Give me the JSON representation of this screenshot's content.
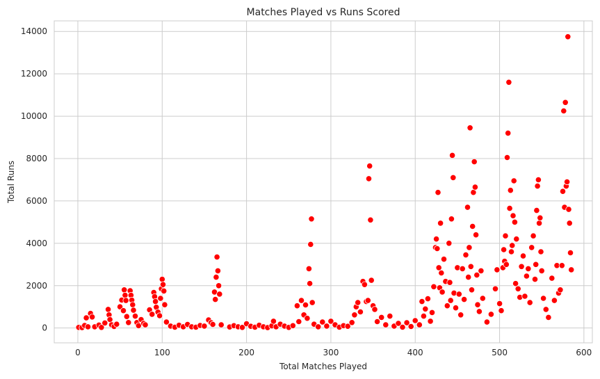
{
  "chart_data": {
    "type": "scatter",
    "title": "Matches Played vs Runs Scored",
    "xlabel": "Total Matches Played",
    "ylabel": "Total Runs",
    "xlim": [
      -28,
      610
    ],
    "ylim": [
      -700,
      14500
    ],
    "x_ticks": [
      0,
      100,
      200,
      300,
      400,
      500,
      600
    ],
    "x_tick_labels": [
      "0",
      "100",
      "200",
      "300",
      "400",
      "500",
      "600"
    ],
    "y_ticks": [
      0,
      2000,
      4000,
      6000,
      8000,
      10000,
      12000,
      14000
    ],
    "y_tick_labels": [
      "0",
      "2000",
      "4000",
      "6000",
      "8000",
      "10000",
      "12000",
      "14000"
    ],
    "grid": true,
    "marker_color": "#ff0000",
    "series": [
      {
        "points": [
          [
            1,
            30
          ],
          [
            5,
            20
          ],
          [
            8,
            120
          ],
          [
            10,
            480
          ],
          [
            12,
            60
          ],
          [
            15,
            690
          ],
          [
            17,
            520
          ],
          [
            20,
            60
          ],
          [
            25,
            140
          ],
          [
            28,
            30
          ],
          [
            32,
            240
          ],
          [
            36,
            880
          ],
          [
            37,
            620
          ],
          [
            38,
            400
          ],
          [
            40,
            150
          ],
          [
            43,
            70
          ],
          [
            46,
            180
          ],
          [
            50,
            1000
          ],
          [
            52,
            1320
          ],
          [
            54,
            820
          ],
          [
            55,
            1800
          ],
          [
            56,
            1550
          ],
          [
            57,
            1300
          ],
          [
            58,
            540
          ],
          [
            60,
            260
          ],
          [
            62,
            1760
          ],
          [
            63,
            1550
          ],
          [
            64,
            1320
          ],
          [
            65,
            1100
          ],
          [
            66,
            840
          ],
          [
            68,
            560
          ],
          [
            70,
            260
          ],
          [
            72,
            110
          ],
          [
            75,
            400
          ],
          [
            78,
            220
          ],
          [
            80,
            150
          ],
          [
            85,
            860
          ],
          [
            88,
            650
          ],
          [
            90,
            1680
          ],
          [
            91,
            1480
          ],
          [
            92,
            1250
          ],
          [
            93,
            980
          ],
          [
            95,
            750
          ],
          [
            97,
            580
          ],
          [
            98,
            1400
          ],
          [
            99,
            1850
          ],
          [
            100,
            2300
          ],
          [
            101,
            2050
          ],
          [
            102,
            1750
          ],
          [
            103,
            1100
          ],
          [
            105,
            280
          ],
          [
            110,
            90
          ],
          [
            115,
            40
          ],
          [
            120,
            130
          ],
          [
            125,
            60
          ],
          [
            130,
            170
          ],
          [
            135,
            60
          ],
          [
            140,
            40
          ],
          [
            145,
            120
          ],
          [
            150,
            90
          ],
          [
            155,
            380
          ],
          [
            158,
            250
          ],
          [
            160,
            170
          ],
          [
            162,
            1700
          ],
          [
            163,
            1350
          ],
          [
            164,
            2400
          ],
          [
            165,
            3350
          ],
          [
            166,
            2700
          ],
          [
            167,
            2000
          ],
          [
            168,
            1600
          ],
          [
            170,
            150
          ],
          [
            180,
            50
          ],
          [
            185,
            110
          ],
          [
            190,
            60
          ],
          [
            195,
            30
          ],
          [
            200,
            200
          ],
          [
            205,
            80
          ],
          [
            210,
            40
          ],
          [
            215,
            130
          ],
          [
            220,
            60
          ],
          [
            225,
            20
          ],
          [
            230,
            100
          ],
          [
            232,
            320
          ],
          [
            235,
            60
          ],
          [
            240,
            180
          ],
          [
            245,
            90
          ],
          [
            250,
            30
          ],
          [
            255,
            110
          ],
          [
            260,
            1050
          ],
          [
            262,
            300
          ],
          [
            265,
            1300
          ],
          [
            268,
            620
          ],
          [
            270,
            1090
          ],
          [
            272,
            460
          ],
          [
            274,
            2800
          ],
          [
            275,
            2100
          ],
          [
            276,
            3950
          ],
          [
            277,
            5150
          ],
          [
            278,
            1200
          ],
          [
            280,
            180
          ],
          [
            285,
            60
          ],
          [
            290,
            280
          ],
          [
            295,
            90
          ],
          [
            300,
            320
          ],
          [
            305,
            150
          ],
          [
            310,
            40
          ],
          [
            315,
            110
          ],
          [
            320,
            80
          ],
          [
            325,
            260
          ],
          [
            328,
            620
          ],
          [
            330,
            1000
          ],
          [
            332,
            1200
          ],
          [
            335,
            760
          ],
          [
            338,
            2200
          ],
          [
            340,
            2050
          ],
          [
            342,
            1250
          ],
          [
            344,
            1300
          ],
          [
            345,
            7050
          ],
          [
            346,
            7650
          ],
          [
            347,
            5100
          ],
          [
            348,
            2250
          ],
          [
            350,
            1050
          ],
          [
            352,
            880
          ],
          [
            355,
            300
          ],
          [
            360,
            500
          ],
          [
            365,
            150
          ],
          [
            370,
            560
          ],
          [
            375,
            90
          ],
          [
            380,
            220
          ],
          [
            385,
            40
          ],
          [
            390,
            250
          ],
          [
            395,
            70
          ],
          [
            400,
            350
          ],
          [
            405,
            150
          ],
          [
            408,
            1250
          ],
          [
            410,
            560
          ],
          [
            412,
            900
          ],
          [
            415,
            1380
          ],
          [
            418,
            320
          ],
          [
            420,
            730
          ],
          [
            422,
            1950
          ],
          [
            424,
            3800
          ],
          [
            425,
            4200
          ],
          [
            426,
            3750
          ],
          [
            427,
            6400
          ],
          [
            428,
            2850
          ],
          [
            429,
            1900
          ],
          [
            430,
            4950
          ],
          [
            431,
            2600
          ],
          [
            432,
            1700
          ],
          [
            434,
            3250
          ],
          [
            436,
            2200
          ],
          [
            438,
            1050
          ],
          [
            440,
            4000
          ],
          [
            441,
            2150
          ],
          [
            442,
            1300
          ],
          [
            443,
            5150
          ],
          [
            444,
            8150
          ],
          [
            445,
            7100
          ],
          [
            446,
            1650
          ],
          [
            448,
            950
          ],
          [
            450,
            2850
          ],
          [
            452,
            1600
          ],
          [
            454,
            620
          ],
          [
            456,
            2800
          ],
          [
            458,
            1350
          ],
          [
            460,
            3450
          ],
          [
            462,
            5700
          ],
          [
            463,
            2400
          ],
          [
            464,
            3800
          ],
          [
            465,
            9450
          ],
          [
            466,
            2900
          ],
          [
            467,
            1800
          ],
          [
            468,
            4800
          ],
          [
            469,
            6400
          ],
          [
            470,
            7850
          ],
          [
            471,
            6650
          ],
          [
            472,
            4400
          ],
          [
            473,
            2500
          ],
          [
            474,
            1100
          ],
          [
            476,
            780
          ],
          [
            478,
            2700
          ],
          [
            480,
            1400
          ],
          [
            485,
            280
          ],
          [
            490,
            650
          ],
          [
            495,
            1850
          ],
          [
            497,
            2750
          ],
          [
            500,
            1150
          ],
          [
            502,
            820
          ],
          [
            504,
            2850
          ],
          [
            505,
            3700
          ],
          [
            506,
            3150
          ],
          [
            507,
            4350
          ],
          [
            508,
            3000
          ],
          [
            509,
            8050
          ],
          [
            510,
            9200
          ],
          [
            511,
            11600
          ],
          [
            512,
            5650
          ],
          [
            513,
            6500
          ],
          [
            514,
            3600
          ],
          [
            515,
            3900
          ],
          [
            516,
            5300
          ],
          [
            517,
            6950
          ],
          [
            518,
            5000
          ],
          [
            519,
            2100
          ],
          [
            520,
            4200
          ],
          [
            522,
            1850
          ],
          [
            524,
            1450
          ],
          [
            526,
            2900
          ],
          [
            528,
            3400
          ],
          [
            530,
            1500
          ],
          [
            532,
            2450
          ],
          [
            534,
            2800
          ],
          [
            536,
            1200
          ],
          [
            538,
            3800
          ],
          [
            540,
            4350
          ],
          [
            542,
            2300
          ],
          [
            543,
            3000
          ],
          [
            544,
            5550
          ],
          [
            545,
            6700
          ],
          [
            546,
            7000
          ],
          [
            547,
            4950
          ],
          [
            548,
            5200
          ],
          [
            549,
            3600
          ],
          [
            550,
            2700
          ],
          [
            552,
            1400
          ],
          [
            555,
            880
          ],
          [
            558,
            500
          ],
          [
            562,
            2350
          ],
          [
            565,
            1300
          ],
          [
            568,
            2950
          ],
          [
            570,
            1650
          ],
          [
            572,
            1800
          ],
          [
            574,
            2950
          ],
          [
            575,
            6450
          ],
          [
            576,
            10250
          ],
          [
            577,
            5700
          ],
          [
            578,
            10650
          ],
          [
            579,
            6700
          ],
          [
            580,
            6900
          ],
          [
            581,
            13750
          ],
          [
            582,
            5600
          ],
          [
            583,
            4950
          ],
          [
            584,
            3550
          ],
          [
            585,
            2750
          ]
        ]
      }
    ]
  }
}
